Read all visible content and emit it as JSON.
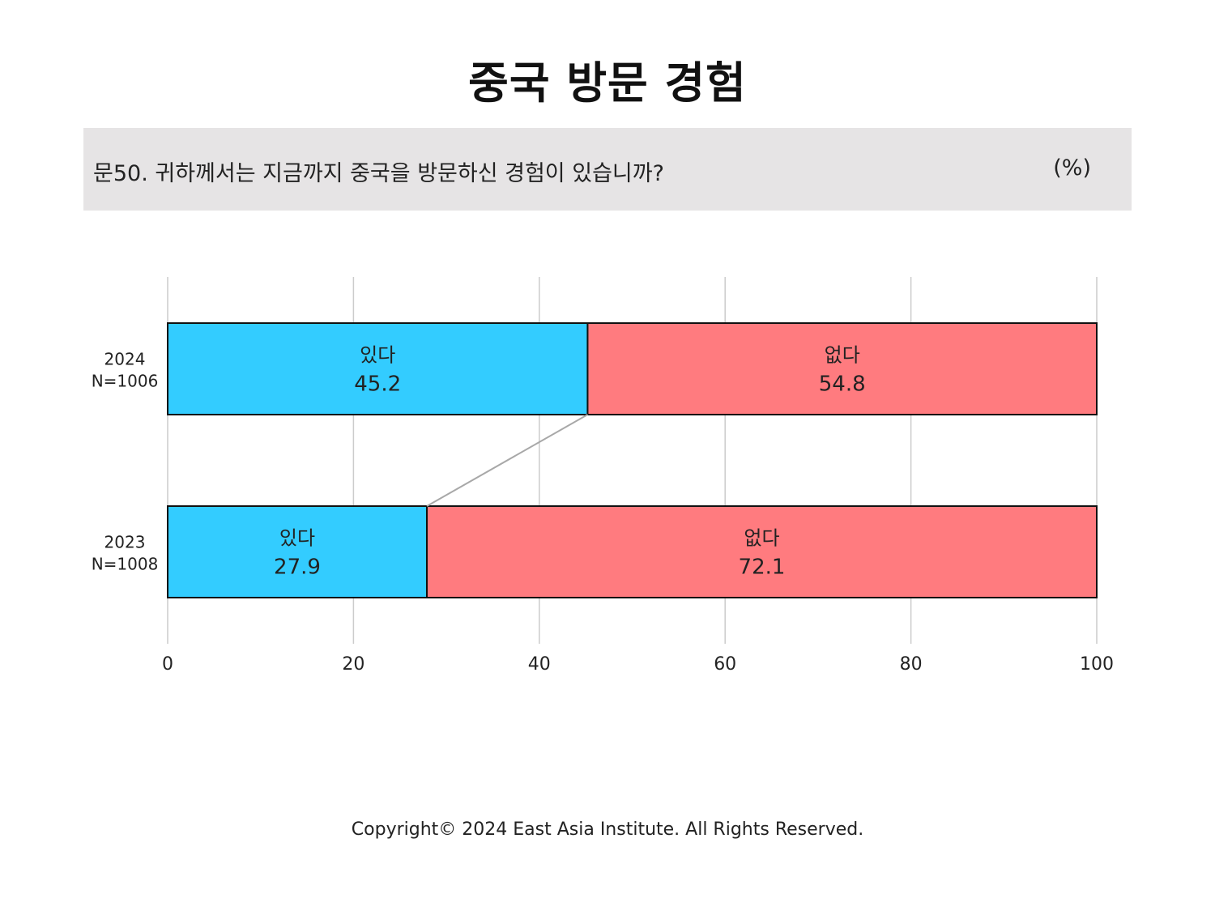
{
  "title": "중국 방문 경험",
  "question": {
    "text": "문50. 귀하께서는 지금까지 중국을 방문하신 경험이 있습니까?",
    "unit": "(%)"
  },
  "chart_data": {
    "type": "bar",
    "orientation": "horizontal",
    "stacked": true,
    "xlim": [
      0,
      100
    ],
    "xticks": [
      "0",
      "20",
      "40",
      "60",
      "80",
      "100"
    ],
    "grid": true,
    "categories": [
      {
        "year": "2024",
        "n": "N=1006"
      },
      {
        "year": "2023",
        "n": "N=1008"
      }
    ],
    "series": [
      {
        "name": "있다",
        "color": "#33ccff",
        "values": [
          45.2,
          27.9
        ],
        "labels": [
          "45.2",
          "27.9"
        ]
      },
      {
        "name": "없다",
        "color": "#ff7b7f",
        "values": [
          54.8,
          72.1
        ],
        "labels": [
          "54.8",
          "72.1"
        ]
      }
    ],
    "connector_color": "#a8a8a8",
    "grid_color": "#cccccc"
  },
  "footer": {
    "copyright": "Copyright© 2024 East Asia Institute. All Rights Reserved."
  }
}
